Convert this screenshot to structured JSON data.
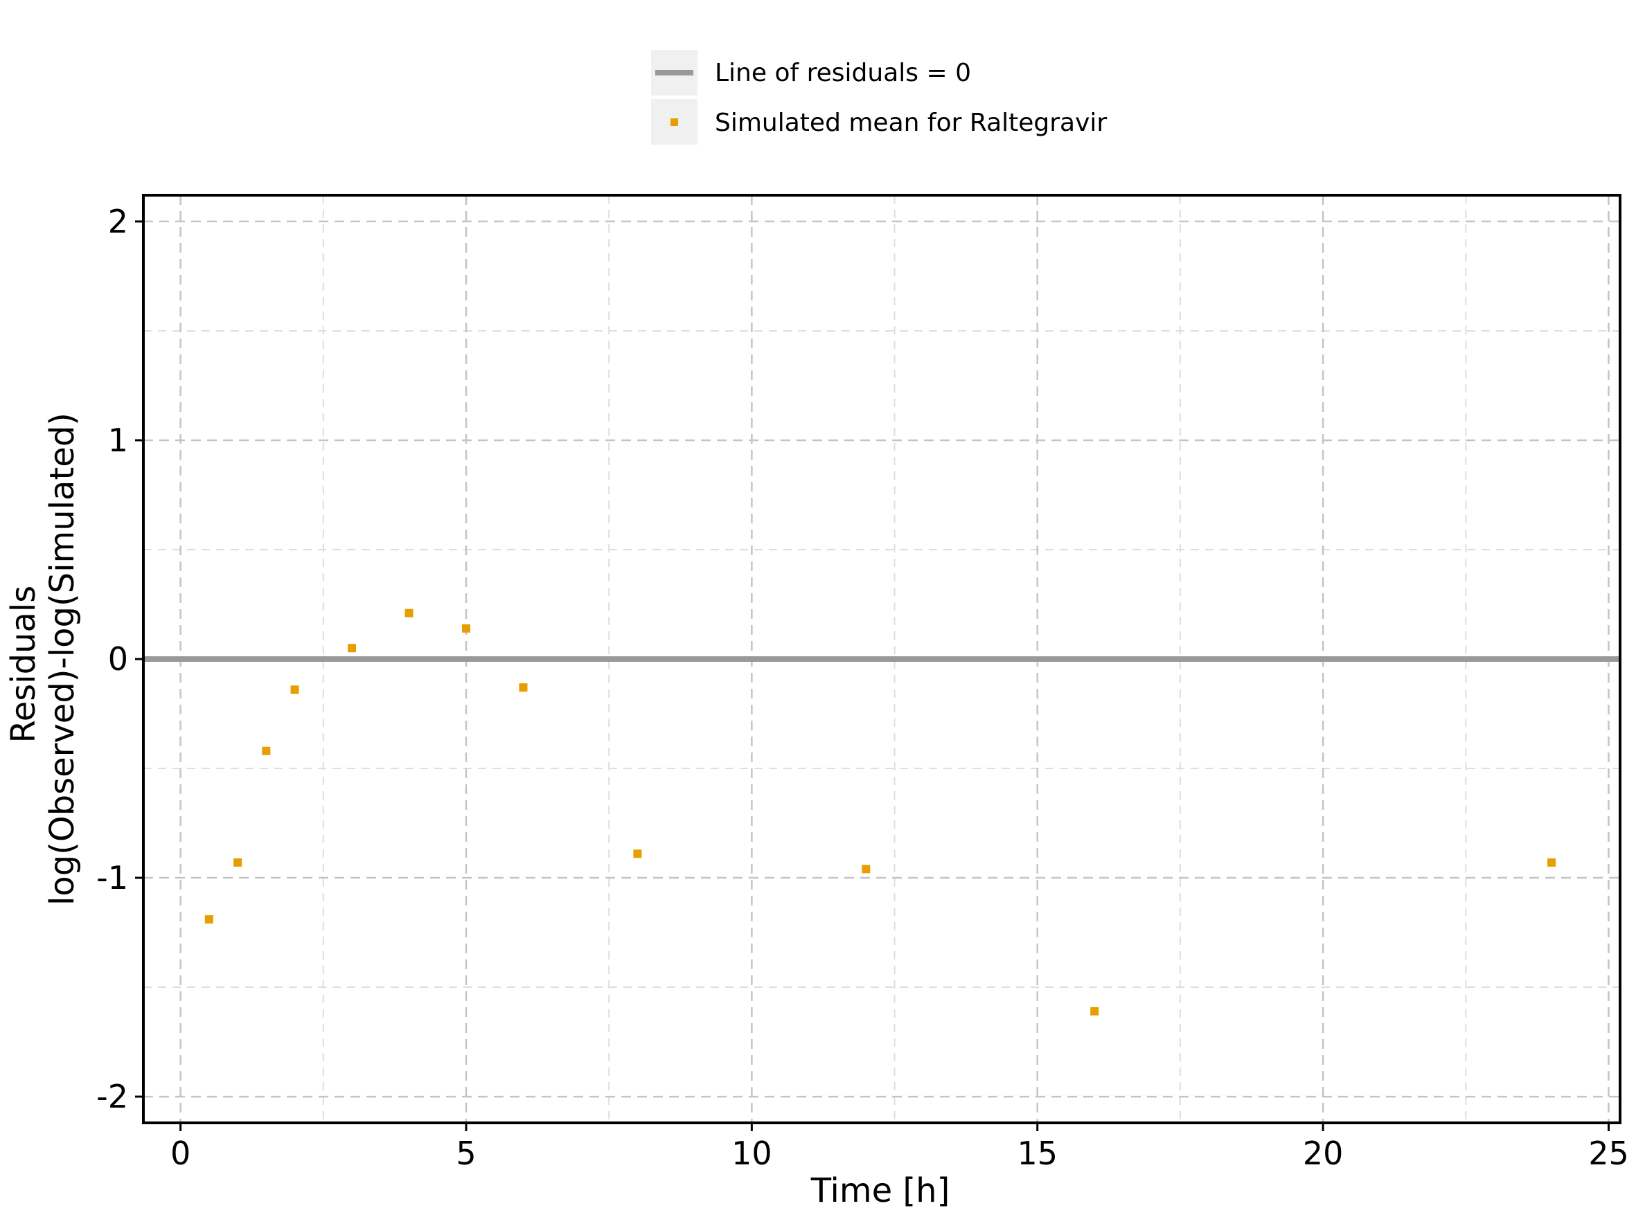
{
  "chart_data": {
    "type": "scatter",
    "xlabel": "Time [h]",
    "ylabel_lines": [
      "Residuals",
      "log(Observed)-log(Simulated)"
    ],
    "xlim": [
      -0.65,
      25.2
    ],
    "ylim": [
      -2.12,
      2.12
    ],
    "x_ticks": [
      0,
      5,
      10,
      15,
      20,
      25
    ],
    "y_ticks": [
      2,
      1,
      0,
      -1,
      -2
    ],
    "x_minor_grid": [
      2.5,
      7.5,
      12.5,
      17.5,
      22.5
    ],
    "y_minor_grid": [
      1.5,
      0.5,
      -0.5,
      -1.5
    ],
    "grid": true,
    "legend_position": "top-center",
    "reference_line": {
      "name": "Line of residuals = 0",
      "y": 0,
      "color": "#999999"
    },
    "series": [
      {
        "name": "Simulated mean for Raltegravir",
        "color": "#E69F00",
        "marker": "square",
        "x": [
          0.5,
          1,
          1.5,
          2,
          3,
          4,
          5,
          6,
          8,
          12,
          16,
          24
        ],
        "y": [
          -1.19,
          -0.93,
          -0.42,
          -0.14,
          0.05,
          0.21,
          0.14,
          -0.13,
          -0.89,
          -0.96,
          -1.61,
          -0.93
        ]
      }
    ]
  }
}
